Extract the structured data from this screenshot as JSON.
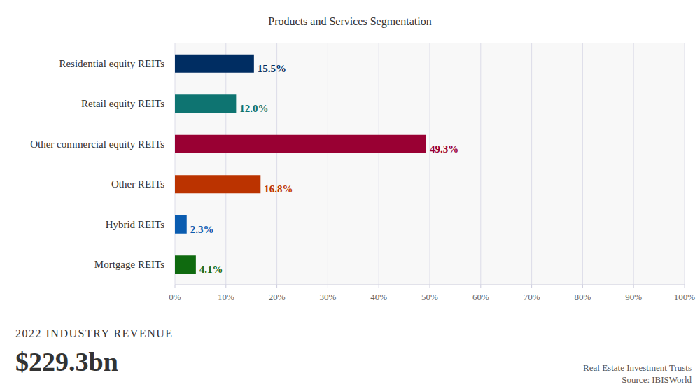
{
  "chart_data": {
    "type": "bar",
    "title": "Products and Services Segmentation",
    "orientation": "horizontal",
    "categories": [
      "Residential equity REITs",
      "Retail equity REITs",
      "Other commercial equity REITs",
      "Other REITs",
      "Hybrid REITs",
      "Mortgage REITs"
    ],
    "values": [
      15.5,
      12.0,
      49.3,
      16.8,
      2.3,
      4.1
    ],
    "value_labels": [
      "15.5%",
      "12.0%",
      "49.3%",
      "16.8%",
      "2.3%",
      "4.1%"
    ],
    "colors": [
      "#002d62",
      "#0e7471",
      "#990033",
      "#bb3300",
      "#0a5cb0",
      "#0f6a0f"
    ],
    "data_labels": true,
    "grid": true,
    "xlim": [
      0,
      100
    ],
    "xticks": [
      {
        "value": 0,
        "label": "0%"
      },
      {
        "value": 10,
        "label": "10%"
      },
      {
        "value": 20,
        "label": "20%"
      },
      {
        "value": 30,
        "label": "30%"
      },
      {
        "value": 40,
        "label": "40%"
      },
      {
        "value": 50,
        "label": "50%"
      },
      {
        "value": 60,
        "label": "60%"
      },
      {
        "value": 70,
        "label": "70%"
      },
      {
        "value": 80,
        "label": "80%"
      },
      {
        "value": 90,
        "label": "90%"
      },
      {
        "value": 100,
        "label": "100%"
      }
    ],
    "annotations": [
      "2022 INDUSTRY REVENUE",
      "$229.3bn",
      "Real Estate Investment Trusts",
      "Source: IBISWorld"
    ]
  }
}
